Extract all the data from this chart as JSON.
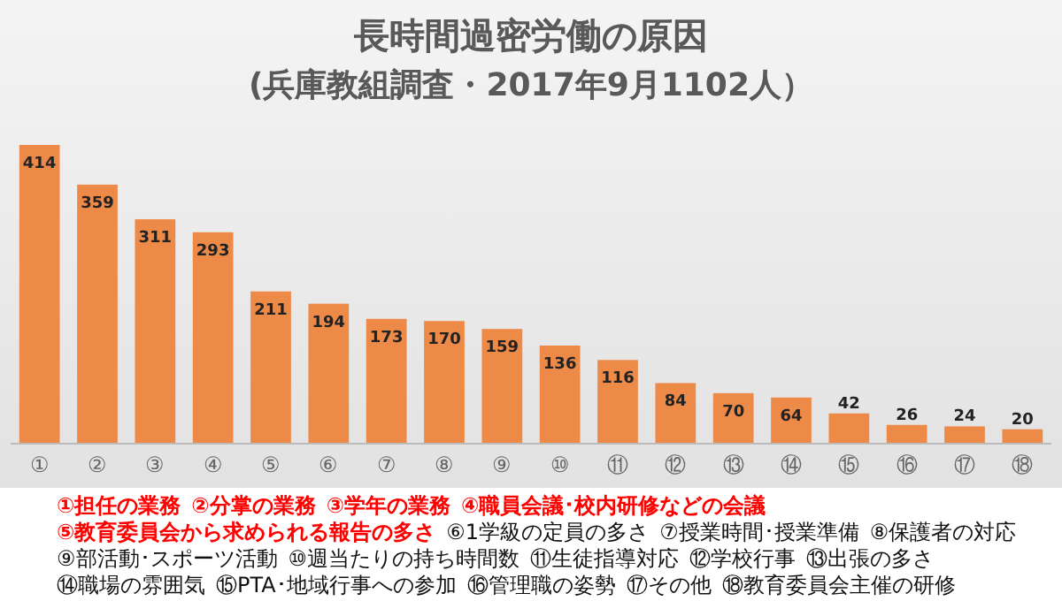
{
  "chart_data": {
    "type": "bar",
    "title": "長時間過密労働の原因",
    "subtitle": "(兵庫教組調査・2017年9月1102人）",
    "categories": [
      "①",
      "②",
      "③",
      "④",
      "⑤",
      "⑥",
      "⑦",
      "⑧",
      "⑨",
      "⑩",
      "⑪",
      "⑫",
      "⑬",
      "⑭",
      "⑮",
      "⑯",
      "⑰",
      "⑱"
    ],
    "values": [
      414,
      359,
      311,
      293,
      211,
      194,
      173,
      170,
      159,
      136,
      116,
      84,
      70,
      64,
      42,
      26,
      24,
      20
    ],
    "color": "#ee8a48",
    "ylim": [
      0,
      414
    ],
    "data_labels": true,
    "annotations": [
      "①担任の業務",
      "②分掌の業務",
      "③学年の業務",
      "④職員会議･校内研修などの会議",
      "⑤教育委員会から求められる報告の多さ",
      "⑥1学級の定員の多さ",
      "⑦授業時間･授業準備",
      "⑧保護者の対応",
      "⑨部活動･スポーツ活動",
      "⑩週当たりの持ち時間数",
      "⑪生徒指導対応",
      "⑫学校行事",
      "⑬出張の多さ",
      "⑭職場の雰囲気",
      "⑮PTA･地域行事への参加",
      "⑯管理職の姿勢",
      "⑰その他",
      "⑱教育委員会主催の研修"
    ]
  }
}
